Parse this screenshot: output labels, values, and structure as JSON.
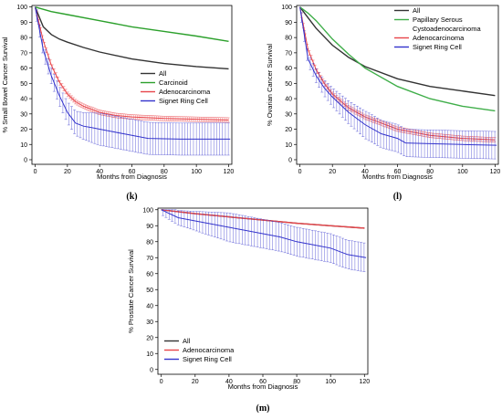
{
  "colors": {
    "all": "#333333",
    "carcinoid": "#2ca02c",
    "adenocarcinoma": "#e8454a",
    "signet_ring": "#3333cc",
    "papillary_serous": "#3fae49"
  },
  "chart_data": [
    {
      "id": "k",
      "type": "line",
      "panel_label": "(k)",
      "xlabel": "Months from Diagnosis",
      "ylabel": "% Small Bowel Cancer Survival",
      "xlim": [
        0,
        120
      ],
      "ylim": [
        0,
        100
      ],
      "xticks": [
        0,
        20,
        40,
        60,
        80,
        100,
        120
      ],
      "yticks": [
        0,
        10,
        20,
        30,
        40,
        50,
        60,
        70,
        80,
        90,
        100
      ],
      "legend_position": "center-right",
      "series": [
        {
          "key": "all",
          "name": "All",
          "color_key": "all",
          "error_bars": false,
          "x": [
            0,
            5,
            10,
            15,
            20,
            30,
            40,
            60,
            80,
            100,
            120
          ],
          "y": [
            100,
            87,
            82,
            79,
            77,
            73.5,
            70.5,
            66,
            63,
            61,
            59.5
          ]
        },
        {
          "key": "carcinoid",
          "name": "Carcinoid",
          "color_key": "carcinoid",
          "error_bars": false,
          "x": [
            0,
            10,
            20,
            40,
            60,
            80,
            100,
            120
          ],
          "y": [
            100,
            97,
            95,
            91,
            87,
            84,
            81,
            77.5
          ]
        },
        {
          "key": "adeno",
          "name": "Adenocarcinoma",
          "color_key": "adenocarcinoma",
          "error_bars": true,
          "err": 1.5,
          "x": [
            0,
            5,
            10,
            15,
            20,
            25,
            30,
            40,
            50,
            60,
            80,
            100,
            120
          ],
          "y": [
            100,
            78,
            62,
            51,
            43,
            38,
            35,
            31,
            29,
            28,
            27,
            26.5,
            26
          ]
        },
        {
          "key": "signet",
          "name": "Signet Ring Cell",
          "color_key": "signet_ring",
          "error_bars": true,
          "err": 7,
          "x": [
            0,
            5,
            10,
            15,
            20,
            25,
            30,
            35,
            40,
            50,
            60,
            70,
            90,
            121
          ],
          "y": [
            100,
            72,
            55,
            42,
            31,
            24,
            22,
            21,
            20,
            18,
            16,
            14,
            13.5,
            13.5
          ]
        }
      ]
    },
    {
      "id": "l",
      "type": "line",
      "panel_label": "(l)",
      "xlabel": "Months from Diagnosis",
      "ylabel": "% Ovarian Cancer Survival",
      "xlim": [
        0,
        120
      ],
      "ylim": [
        0,
        100
      ],
      "xticks": [
        0,
        20,
        40,
        60,
        80,
        100,
        120
      ],
      "yticks": [
        0,
        10,
        20,
        30,
        40,
        50,
        60,
        70,
        80,
        90,
        100
      ],
      "legend_position": "top-right",
      "series": [
        {
          "key": "all",
          "name": "All",
          "color_key": "all",
          "error_bars": false,
          "x": [
            0,
            5,
            10,
            20,
            30,
            40,
            60,
            80,
            100,
            120
          ],
          "y": [
            100,
            93,
            86,
            75,
            67,
            61,
            53,
            48,
            45,
            42
          ]
        },
        {
          "key": "papillary",
          "name": "Papillary Serous\nCystoadenocarcinoma",
          "color_key": "papillary_serous",
          "error_bars": false,
          "x": [
            0,
            5,
            10,
            20,
            30,
            40,
            60,
            80,
            100,
            120
          ],
          "y": [
            100,
            96,
            91,
            79,
            69,
            60,
            48,
            40,
            35,
            32
          ]
        },
        {
          "key": "adeno",
          "name": "Adenocarcinoma",
          "color_key": "adenocarcinoma",
          "error_bars": true,
          "err": 1.5,
          "x": [
            0,
            5,
            10,
            15,
            20,
            30,
            40,
            60,
            80,
            100,
            120
          ],
          "y": [
            100,
            72,
            59,
            50,
            43,
            34,
            28,
            20,
            16,
            14,
            13
          ]
        },
        {
          "key": "signet",
          "name": "Signet Ring Cell",
          "color_key": "signet_ring",
          "error_bars": true,
          "err": 6,
          "x": [
            0,
            5,
            10,
            15,
            20,
            30,
            40,
            50,
            60,
            65,
            80,
            100,
            121
          ],
          "y": [
            100,
            66,
            55,
            47,
            41,
            31,
            23,
            17,
            14,
            11,
            10.5,
            10,
            9.5
          ]
        }
      ]
    },
    {
      "id": "m",
      "type": "line",
      "panel_label": "(m)",
      "xlabel": "Months from Diagnosis",
      "ylabel": "% Prostate Cancer Survival",
      "xlim": [
        0,
        120
      ],
      "ylim": [
        0,
        100
      ],
      "xticks": [
        0,
        20,
        40,
        60,
        80,
        100,
        120
      ],
      "yticks": [
        0,
        10,
        20,
        30,
        40,
        50,
        60,
        70,
        80,
        90,
        100
      ],
      "legend_position": "bottom-left",
      "series": [
        {
          "key": "all",
          "name": "All",
          "color_key": "all",
          "error_bars": false,
          "x": [
            0,
            20,
            40,
            60,
            80,
            100,
            120
          ],
          "y": [
            100,
            97.5,
            95.5,
            93.5,
            91.5,
            90,
            88.5
          ]
        },
        {
          "key": "adeno",
          "name": "Adenocarcinoma",
          "color_key": "adenocarcinoma",
          "error_bars": false,
          "x": [
            0,
            20,
            40,
            60,
            80,
            100,
            120
          ],
          "y": [
            100,
            97.5,
            95.5,
            93.5,
            91.5,
            90,
            88.5
          ]
        },
        {
          "key": "signet",
          "name": "Signet Ring Cell",
          "color_key": "signet_ring",
          "error_bars": true,
          "err": 6,
          "x": [
            0,
            10,
            20,
            30,
            40,
            50,
            60,
            70,
            80,
            90,
            100,
            110,
            121
          ],
          "y": [
            100,
            95,
            93,
            91,
            89,
            87,
            85,
            83,
            80,
            78,
            76,
            72,
            70
          ]
        }
      ]
    }
  ]
}
